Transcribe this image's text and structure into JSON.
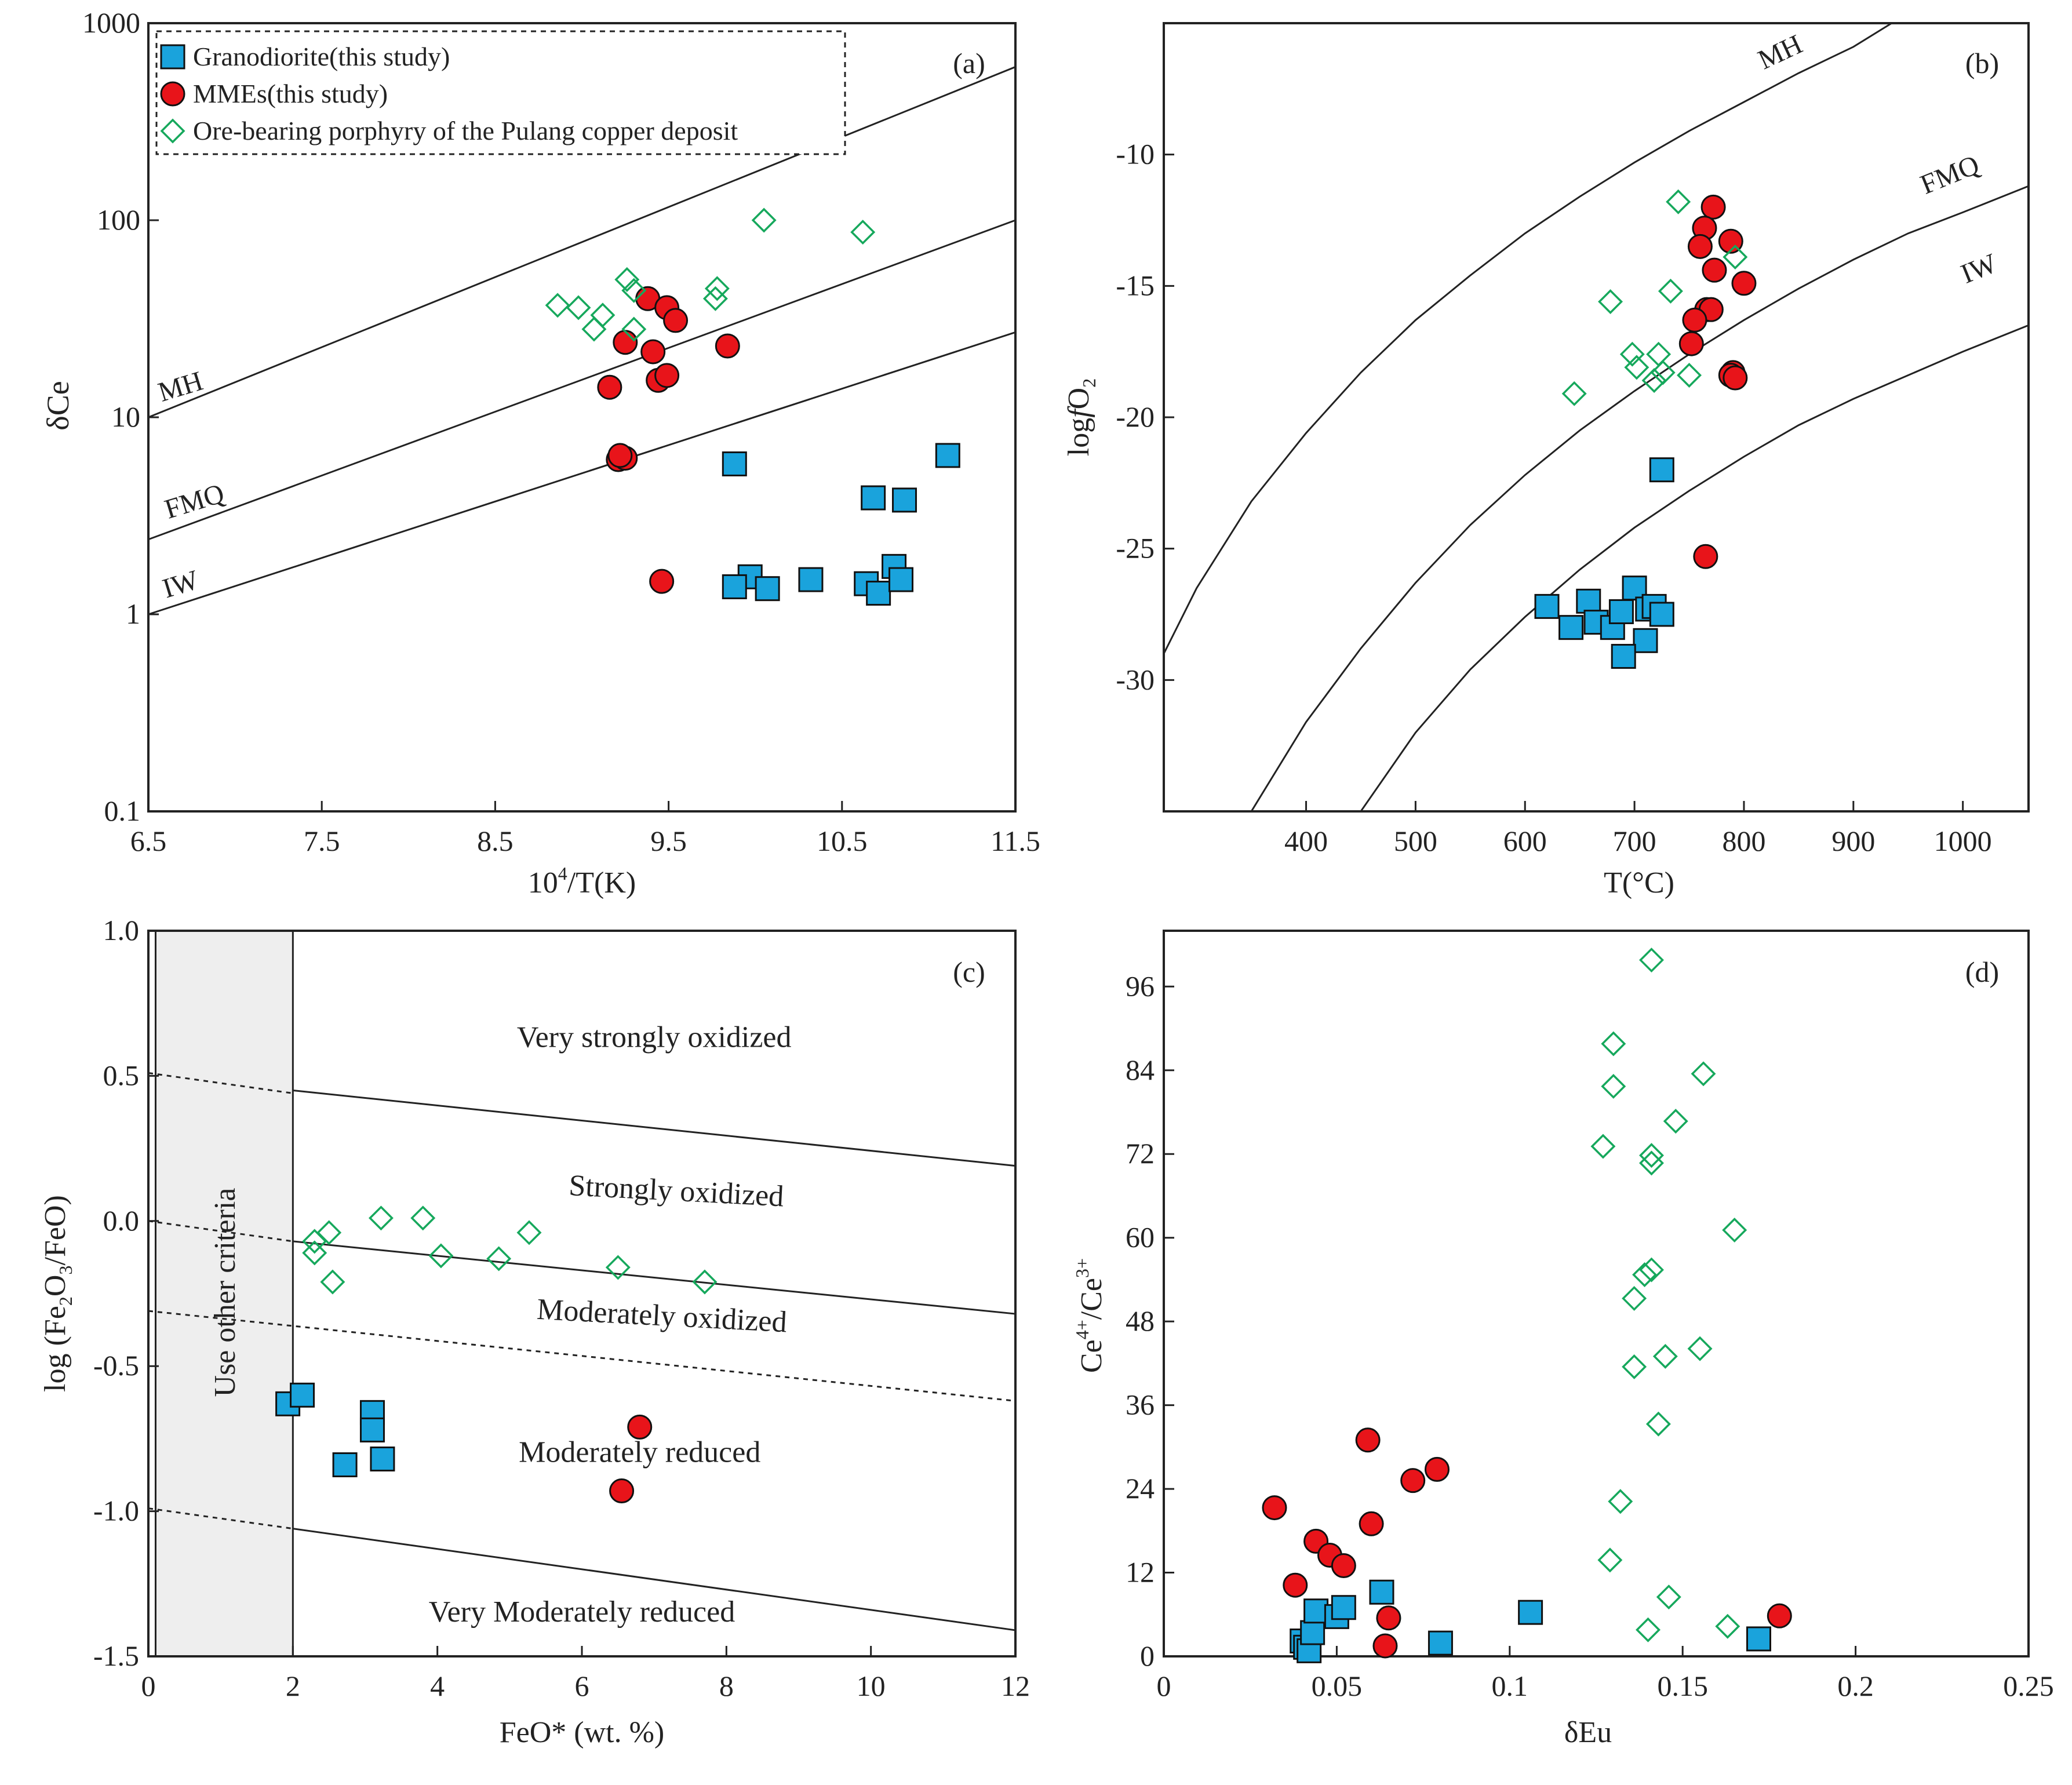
{
  "colors": {
    "granodiorite": "#1aa3dc",
    "mme": "#e8141a",
    "porphyry": "#16a85c",
    "axis": "#222222",
    "shade": "#eeeeee"
  },
  "chart_data": [
    {
      "id": "a",
      "type": "scatter",
      "panel_label": "(a)",
      "xlabel_main": "10",
      "xlabel_sup": "4",
      "xlabel_rest": "/T(K)",
      "ylabel": "δCe",
      "xlim": [
        6.5,
        11.5
      ],
      "ylim": [
        0.1,
        1000
      ],
      "yscale": "log",
      "x_ticks": [
        "6.5",
        "7.5",
        "8.5",
        "9.5",
        "10.5",
        "11.5"
      ],
      "y_ticks": [
        "0.1",
        "1",
        "10",
        "100",
        "1000"
      ],
      "legend": {
        "position": "top-left",
        "entries": [
          {
            "series": "granodiorite",
            "label": "Granodiorite(this study)"
          },
          {
            "series": "mme",
            "label": "MMEs(this study)"
          },
          {
            "series": "porphyry",
            "label": "Ore-bearing porphyry of the Pulang copper deposit"
          }
        ]
      },
      "lines": [
        {
          "label": "MH",
          "from": [
            6.5,
            10
          ],
          "to": [
            11.5,
            600
          ]
        },
        {
          "label": "FMQ",
          "from": [
            6.5,
            2.4
          ],
          "to": [
            11.5,
            100
          ]
        },
        {
          "label": "IW",
          "from": [
            6.5,
            1.0
          ],
          "to": [
            11.5,
            27
          ]
        }
      ],
      "series": [
        {
          "name": "granodiorite",
          "marker": "square",
          "points": [
            [
              9.88,
              5.8
            ],
            [
              10.68,
              3.9
            ],
            [
              10.86,
              3.8
            ],
            [
              11.11,
              6.4
            ],
            [
              9.97,
              1.55
            ],
            [
              10.07,
              1.35
            ],
            [
              9.88,
              1.38
            ],
            [
              10.32,
              1.5
            ],
            [
              10.64,
              1.43
            ],
            [
              10.71,
              1.28
            ],
            [
              10.8,
              1.75
            ],
            [
              10.84,
              1.5
            ]
          ]
        },
        {
          "name": "mme",
          "marker": "circle",
          "points": [
            [
              9.38,
              40
            ],
            [
              9.49,
              36
            ],
            [
              9.54,
              31
            ],
            [
              9.25,
              24
            ],
            [
              9.41,
              21.5
            ],
            [
              9.84,
              23
            ],
            [
              9.16,
              14.2
            ],
            [
              9.44,
              15.4
            ],
            [
              9.49,
              16.3
            ],
            [
              9.21,
              6.1
            ],
            [
              9.25,
              6.2
            ],
            [
              9.22,
              6.4
            ],
            [
              9.46,
              1.47
            ]
          ]
        },
        {
          "name": "porphyry",
          "marker": "diamond",
          "points": [
            [
              10.05,
              100
            ],
            [
              10.62,
              87
            ],
            [
              8.86,
              37
            ],
            [
              8.98,
              36
            ],
            [
              9.26,
              50
            ],
            [
              9.3,
              44
            ],
            [
              9.12,
              33
            ],
            [
              9.07,
              28
            ],
            [
              9.3,
              28
            ],
            [
              9.78,
              45
            ],
            [
              9.77,
              40
            ]
          ]
        }
      ]
    },
    {
      "id": "b",
      "type": "scatter",
      "panel_label": "(b)",
      "xlabel": "T(°C)",
      "ylabel_main": "log",
      "ylabel_italic": "f",
      "ylabel_o": "O",
      "ylabel_sub": "2",
      "xlim": [
        270,
        1060
      ],
      "ylim": [
        -35,
        -5
      ],
      "x_ticks": [
        400,
        500,
        600,
        700,
        800,
        900,
        1000
      ],
      "y_ticks": [
        -10,
        -15,
        -20,
        -25,
        -30
      ],
      "curves": [
        {
          "label": "MH",
          "points": [
            [
              270,
              -29
            ],
            [
              300,
              -26.5
            ],
            [
              350,
              -23.2
            ],
            [
              400,
              -20.6
            ],
            [
              450,
              -18.3
            ],
            [
              500,
              -16.3
            ],
            [
              550,
              -14.6
            ],
            [
              600,
              -13
            ],
            [
              650,
              -11.6
            ],
            [
              700,
              -10.3
            ],
            [
              750,
              -9.1
            ],
            [
              800,
              -8
            ],
            [
              850,
              -6.9
            ],
            [
              900,
              -5.9
            ],
            [
              935,
              -5
            ]
          ]
        },
        {
          "label": "FMQ",
          "points": [
            [
              350,
              -35
            ],
            [
              400,
              -31.6
            ],
            [
              450,
              -28.8
            ],
            [
              500,
              -26.3
            ],
            [
              550,
              -24.1
            ],
            [
              600,
              -22.2
            ],
            [
              650,
              -20.5
            ],
            [
              700,
              -19
            ],
            [
              750,
              -17.6
            ],
            [
              800,
              -16.3
            ],
            [
              850,
              -15.1
            ],
            [
              900,
              -14
            ],
            [
              950,
              -13
            ],
            [
              1000,
              -12.2
            ],
            [
              1060,
              -11.2
            ]
          ]
        },
        {
          "label": "IW",
          "points": [
            [
              450,
              -35
            ],
            [
              500,
              -32
            ],
            [
              550,
              -29.6
            ],
            [
              600,
              -27.6
            ],
            [
              650,
              -25.8
            ],
            [
              700,
              -24.2
            ],
            [
              750,
              -22.8
            ],
            [
              800,
              -21.5
            ],
            [
              850,
              -20.3
            ],
            [
              900,
              -19.3
            ],
            [
              950,
              -18.4
            ],
            [
              1000,
              -17.5
            ],
            [
              1060,
              -16.5
            ]
          ]
        }
      ],
      "series": [
        {
          "name": "granodiorite",
          "marker": "square",
          "points": [
            [
              725,
              -22
            ],
            [
              620,
              -27.2
            ],
            [
              642,
              -28
            ],
            [
              658,
              -27
            ],
            [
              665,
              -27.8
            ],
            [
              680,
              -28
            ],
            [
              688,
              -27.4
            ],
            [
              700,
              -26.5
            ],
            [
              712,
              -27.3
            ],
            [
              718,
              -27.2
            ],
            [
              725,
              -27.5
            ],
            [
              710,
              -28.5
            ],
            [
              690,
              -29.1
            ]
          ]
        },
        {
          "name": "mme",
          "marker": "circle",
          "points": [
            [
              772,
              -12
            ],
            [
              764,
              -12.8
            ],
            [
              788,
              -13.3
            ],
            [
              760,
              -13.5
            ],
            [
              773,
              -14.4
            ],
            [
              800,
              -14.9
            ],
            [
              766,
              -15.9
            ],
            [
              770,
              -15.9
            ],
            [
              755,
              -16.3
            ],
            [
              752,
              -17.2
            ],
            [
              790,
              -18.3
            ],
            [
              788,
              -18.4
            ],
            [
              792,
              -18.5
            ],
            [
              765,
              -25.3
            ]
          ]
        },
        {
          "name": "porphyry",
          "marker": "diamond",
          "points": [
            [
              740,
              -11.8
            ],
            [
              792,
              -13.9
            ],
            [
              733,
              -15.2
            ],
            [
              678,
              -15.6
            ],
            [
              698,
              -17.6
            ],
            [
              722,
              -17.6
            ],
            [
              702,
              -18.1
            ],
            [
              726,
              -18.3
            ],
            [
              718,
              -18.6
            ],
            [
              750,
              -18.4
            ],
            [
              645,
              -19.1
            ]
          ]
        }
      ]
    },
    {
      "id": "c",
      "type": "scatter",
      "panel_label": "(c)",
      "xlabel": "FeO* (wt. %)",
      "ylabel_main": "log (Fe",
      "ylabel_sub1": "2",
      "ylabel_mid": "O",
      "ylabel_sub2": "3",
      "ylabel_rest": "/FeO)",
      "xlim": [
        0,
        12
      ],
      "ylim": [
        -1.5,
        1.0
      ],
      "x_ticks": [
        0,
        2,
        4,
        6,
        8,
        10,
        12
      ],
      "y_ticks": [
        "1.0",
        "0.5",
        "0.0",
        "-0.5",
        "-1.0",
        "-1.5"
      ],
      "shaded": {
        "x_from": 0.1,
        "x_to": 2.0,
        "label": "Use other criteria"
      },
      "solid_lines": [
        {
          "from": [
            2,
            0.45
          ],
          "to": [
            12,
            0.19
          ]
        },
        {
          "from": [
            2,
            -0.07
          ],
          "to": [
            12,
            -0.32
          ]
        },
        {
          "from": [
            2,
            -1.06
          ],
          "to": [
            12,
            -1.41
          ]
        }
      ],
      "dashed_lines": [
        {
          "from": [
            0,
            0.51
          ],
          "to": [
            2,
            0.44
          ]
        },
        {
          "from": [
            0,
            0.0
          ],
          "to": [
            2,
            -0.07
          ]
        },
        {
          "from": [
            0,
            -0.31
          ],
          "to": [
            12,
            -0.62
          ]
        },
        {
          "from": [
            0,
            -0.99
          ],
          "to": [
            2,
            -1.06
          ]
        }
      ],
      "zones": [
        {
          "label": "Very  strongly  oxidized",
          "at": [
            7.0,
            0.6
          ],
          "rotate": 0
        },
        {
          "label": "Strongly  oxidized",
          "at": [
            7.3,
            0.07
          ],
          "rotate": 3
        },
        {
          "label": "Moderately  oxidized",
          "at": [
            7.1,
            -0.36
          ],
          "rotate": 3
        },
        {
          "label": "Moderately  reduced",
          "at": [
            6.8,
            -0.83
          ],
          "rotate": 0
        },
        {
          "label": "Very Moderately  reduced",
          "at": [
            6.0,
            -1.38
          ],
          "rotate": 0
        }
      ],
      "series": [
        {
          "name": "granodiorite",
          "marker": "square",
          "points": [
            [
              1.93,
              -0.63
            ],
            [
              2.13,
              -0.6
            ],
            [
              3.1,
              -0.66
            ],
            [
              3.1,
              -0.72
            ],
            [
              2.72,
              -0.84
            ],
            [
              3.24,
              -0.82
            ]
          ]
        },
        {
          "name": "mme",
          "marker": "circle",
          "points": [
            [
              6.8,
              -0.71
            ],
            [
              6.55,
              -0.93
            ]
          ]
        },
        {
          "name": "porphyry",
          "marker": "diamond",
          "points": [
            [
              2.3,
              -0.07
            ],
            [
              2.3,
              -0.11
            ],
            [
              2.5,
              -0.04
            ],
            [
              2.55,
              -0.21
            ],
            [
              3.22,
              0.01
            ],
            [
              3.8,
              0.01
            ],
            [
              4.05,
              -0.12
            ],
            [
              4.85,
              -0.13
            ],
            [
              5.27,
              -0.04
            ],
            [
              6.5,
              -0.16
            ],
            [
              7.7,
              -0.21
            ]
          ]
        }
      ]
    },
    {
      "id": "d",
      "type": "scatter",
      "panel_label": "(d)",
      "xlabel": "δEu",
      "ylabel_main": "Ce",
      "ylabel_sup1": "4+",
      "ylabel_mid": "/Ce",
      "ylabel_sup2": "3+",
      "xlim": [
        0,
        0.25
      ],
      "ylim": [
        0,
        104
      ],
      "x_ticks": [
        "0",
        "0.05",
        "0.1",
        "0.15",
        "0.2",
        "0.25"
      ],
      "y_ticks": [
        0,
        12,
        24,
        36,
        48,
        60,
        72,
        84,
        96
      ],
      "series": [
        {
          "name": "granodiorite",
          "marker": "square",
          "points": [
            [
              0.04,
              2.2
            ],
            [
              0.041,
              1.3
            ],
            [
              0.042,
              0.8
            ],
            [
              0.043,
              3.4
            ],
            [
              0.044,
              6.5
            ],
            [
              0.05,
              5.7
            ],
            [
              0.052,
              7
            ],
            [
              0.063,
              9.2
            ],
            [
              0.08,
              1.9
            ],
            [
              0.106,
              6.3
            ],
            [
              0.172,
              2.5
            ]
          ]
        },
        {
          "name": "mme",
          "marker": "circle",
          "points": [
            [
              0.032,
              21.3
            ],
            [
              0.038,
              10.2
            ],
            [
              0.044,
              16.5
            ],
            [
              0.048,
              14.5
            ],
            [
              0.052,
              13
            ],
            [
              0.059,
              31
            ],
            [
              0.06,
              19
            ],
            [
              0.064,
              1.5
            ],
            [
              0.065,
              5.5
            ],
            [
              0.072,
              25.2
            ],
            [
              0.079,
              26.8
            ],
            [
              0.178,
              5.8
            ]
          ]
        },
        {
          "name": "porphyry",
          "marker": "diamond",
          "points": [
            [
              0.141,
              99.8
            ],
            [
              0.13,
              87.8
            ],
            [
              0.156,
              83.5
            ],
            [
              0.13,
              81.7
            ],
            [
              0.148,
              76.7
            ],
            [
              0.127,
              73.1
            ],
            [
              0.141,
              71.8
            ],
            [
              0.141,
              70.7
            ],
            [
              0.165,
              61.1
            ],
            [
              0.141,
              55.4
            ],
            [
              0.139,
              54.7
            ],
            [
              0.136,
              51.3
            ],
            [
              0.145,
              43
            ],
            [
              0.155,
              44.1
            ],
            [
              0.136,
              41.5
            ],
            [
              0.143,
              33.3
            ],
            [
              0.132,
              22.2
            ],
            [
              0.129,
              13.8
            ],
            [
              0.146,
              8.5
            ],
            [
              0.14,
              3.8
            ],
            [
              0.163,
              4.3
            ]
          ]
        }
      ]
    }
  ]
}
